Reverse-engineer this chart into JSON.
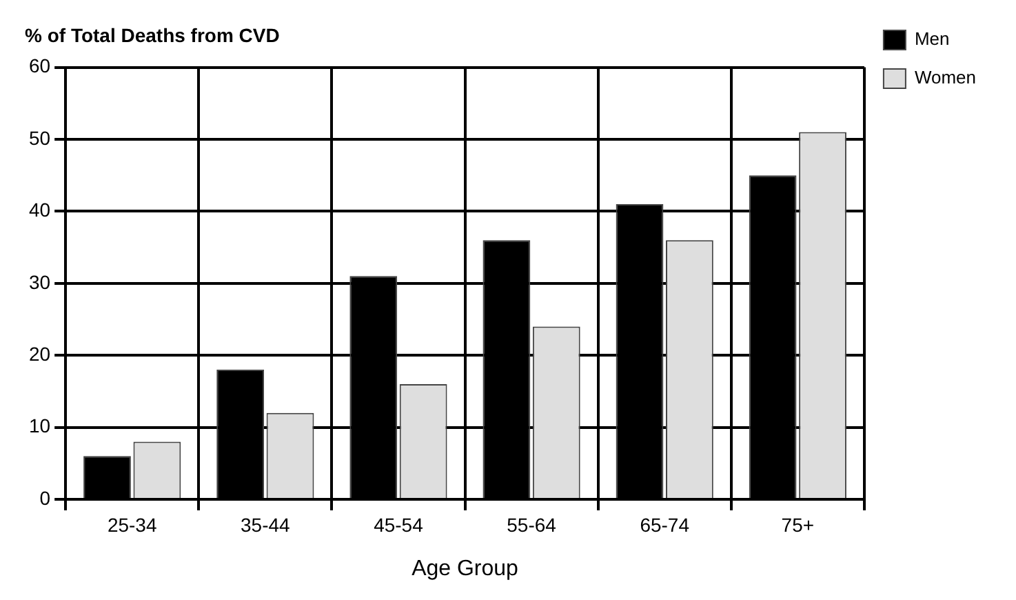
{
  "chart_data": {
    "type": "bar",
    "ylabel": "% of Total Deaths from CVD",
    "xlabel": "Age Group",
    "categories": [
      "25-34",
      "35-44",
      "45-54",
      "55-64",
      "65-74",
      "75+"
    ],
    "series": [
      {
        "name": "Men",
        "color": "#000000",
        "values": [
          6,
          18,
          31,
          36,
          41,
          45
        ]
      },
      {
        "name": "Women",
        "color": "#dedede",
        "values": [
          8,
          12,
          16,
          24,
          36,
          51
        ]
      }
    ],
    "ylim": [
      0,
      60
    ],
    "yticks": [
      0,
      10,
      20,
      30,
      40,
      50,
      60
    ],
    "grid": true,
    "legend": "right"
  }
}
